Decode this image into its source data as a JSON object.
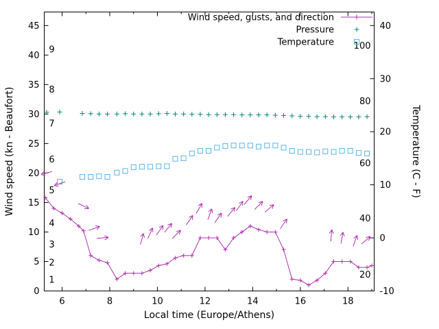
{
  "chart_data": {
    "type": "line",
    "title": "",
    "xlabel": "Local time (Europe/Athens)",
    "ylabel_left": "Wind speed (kn - Beaufort)",
    "ylabel_right": "Temperature (C - F)",
    "x_range": [
      5.25,
      19.1
    ],
    "x_ticks_major": [
      6,
      8,
      10,
      12,
      14,
      16,
      18
    ],
    "x_ticks_minor": [
      7,
      9,
      11,
      13,
      15,
      17,
      19
    ],
    "y_left_range": [
      0,
      47.3
    ],
    "y_left_ticks": [
      0,
      5,
      10,
      15,
      20,
      25,
      30,
      35,
      40,
      45
    ],
    "y_right_ticks_celsius": [
      -10,
      0,
      10,
      20,
      30,
      40
    ],
    "y_right_to_left": {
      "c": [
        -10,
        40
      ],
      "kn": [
        0,
        45
      ]
    },
    "grid": false,
    "legend_position": "top-right",
    "beaufort_labels": [
      {
        "label": "1",
        "kn": 1.9
      },
      {
        "label": "2",
        "kn": 4.8
      },
      {
        "label": "3",
        "kn": 7.9
      },
      {
        "label": "4",
        "kn": 11.5
      },
      {
        "label": "5",
        "kn": 17.1
      },
      {
        "label": "6",
        "kn": 22.3
      },
      {
        "label": "7",
        "kn": 28.4
      },
      {
        "label": "8",
        "kn": 34.2
      },
      {
        "label": "9",
        "kn": 41.0
      }
    ],
    "fahrenheit_labels": [
      {
        "label": "100",
        "kn": 41.6
      },
      {
        "label": "80",
        "kn": 32.2
      },
      {
        "label": "60",
        "kn": 21.7
      },
      {
        "label": "40",
        "kn": 12.3
      },
      {
        "label": "20",
        "kn": 2.8
      }
    ],
    "series": [
      {
        "name": "Wind speed, gusts, and direction",
        "axis": "left",
        "marker": "line-plus",
        "color": "#b030b0",
        "x": [
          5.3,
          5.65,
          6.0,
          6.35,
          6.7,
          6.9,
          7.2,
          7.55,
          7.9,
          8.3,
          8.65,
          9.0,
          9.35,
          9.7,
          10.05,
          10.4,
          10.75,
          11.1,
          11.45,
          11.8,
          12.15,
          12.5,
          12.85,
          13.2,
          13.55,
          13.9,
          14.25,
          14.6,
          14.95,
          15.3,
          15.65,
          16.0,
          16.35,
          16.7,
          17.05,
          17.4,
          17.75,
          18.1,
          18.45,
          18.8,
          19.0
        ],
        "kn": [
          15.8,
          14.0,
          13.2,
          12.2,
          11.0,
          10.2,
          6.0,
          5.2,
          4.8,
          2.0,
          3.0,
          3.0,
          3.0,
          3.5,
          4.3,
          4.6,
          5.6,
          6.0,
          6.0,
          9.0,
          9.0,
          9.0,
          7.0,
          9.0,
          10.0,
          11.0,
          10.4,
          10.0,
          10.0,
          7.0,
          2.0,
          1.8,
          1.0,
          1.8,
          3.0,
          5.0,
          5.0,
          5.0,
          4.0,
          4.0,
          4.3
        ]
      },
      {
        "name": "Pressure",
        "axis": "left",
        "marker": "plus",
        "color": "#008878",
        "x": [
          5.35,
          5.9,
          6.85,
          7.2,
          7.55,
          7.9,
          8.3,
          8.65,
          9.0,
          9.35,
          9.7,
          10.05,
          10.4,
          10.75,
          11.1,
          11.45,
          11.8,
          12.15,
          12.5,
          12.85,
          13.2,
          13.55,
          13.9,
          14.25,
          14.6,
          14.95,
          15.3,
          15.65,
          16.0,
          16.35,
          16.7,
          17.05,
          17.4,
          17.75,
          18.1,
          18.45,
          18.8
        ],
        "kn": [
          30.3,
          30.35,
          30.1,
          30.05,
          30.0,
          30.0,
          30.0,
          30.05,
          30.0,
          30.0,
          30.0,
          30.05,
          30.1,
          30.0,
          30.0,
          29.95,
          29.95,
          29.9,
          29.9,
          29.9,
          29.9,
          29.85,
          29.85,
          29.85,
          29.85,
          29.8,
          29.75,
          29.7,
          29.6,
          29.6,
          29.55,
          29.55,
          29.5,
          29.5,
          29.5,
          29.5,
          29.55
        ]
      },
      {
        "name": "Temperature",
        "axis": "right",
        "marker": "square",
        "color": "#5cb3e6",
        "x": [
          5.9,
          6.85,
          7.2,
          7.55,
          7.9,
          8.3,
          8.65,
          9.0,
          9.35,
          9.7,
          10.05,
          10.4,
          10.75,
          11.1,
          11.45,
          11.8,
          12.15,
          12.5,
          12.85,
          13.2,
          13.55,
          13.9,
          14.25,
          14.6,
          14.95,
          15.3,
          15.65,
          16.0,
          16.35,
          16.7,
          17.05,
          17.4,
          17.75,
          18.1,
          18.45,
          18.8
        ],
        "celsius": [
          10.6,
          11.5,
          11.5,
          11.6,
          11.5,
          12.3,
          12.6,
          13.3,
          13.4,
          13.4,
          13.5,
          13.5,
          14.9,
          15.0,
          15.9,
          16.4,
          16.4,
          17.0,
          17.3,
          17.4,
          17.4,
          17.4,
          17.2,
          17.4,
          17.4,
          17.0,
          16.4,
          16.2,
          16.2,
          16.1,
          16.3,
          16.2,
          16.4,
          16.4,
          16.0,
          15.9
        ]
      }
    ],
    "gusts_x_kn_dir": [
      [
        5.35,
        20.0,
        195
      ],
      [
        5.9,
        18.2,
        200
      ],
      [
        6.9,
        14.4,
        335
      ],
      [
        7.35,
        10.6,
        20
      ],
      [
        7.7,
        9.0,
        5
      ],
      [
        9.35,
        8.8,
        75
      ],
      [
        9.7,
        9.8,
        65
      ],
      [
        10.1,
        10.3,
        55
      ],
      [
        10.45,
        10.7,
        50
      ],
      [
        10.8,
        9.6,
        45
      ],
      [
        11.35,
        12.0,
        55
      ],
      [
        11.75,
        14.0,
        60
      ],
      [
        12.2,
        13.0,
        70
      ],
      [
        12.55,
        12.4,
        55
      ],
      [
        13.1,
        13.4,
        50
      ],
      [
        13.45,
        14.4,
        55
      ],
      [
        13.8,
        15.4,
        50
      ],
      [
        14.25,
        14.5,
        45
      ],
      [
        14.7,
        14.0,
        40
      ],
      [
        15.3,
        11.4,
        55
      ],
      [
        17.3,
        9.4,
        85
      ],
      [
        17.75,
        9.0,
        80
      ],
      [
        18.3,
        8.5,
        70
      ],
      [
        18.75,
        8.6,
        40
      ]
    ]
  },
  "colors": {
    "axis": "#000000",
    "background": "#ffffff",
    "wind": "#b030b0",
    "pressure": "#008878",
    "temperature": "#5cb3e6"
  }
}
